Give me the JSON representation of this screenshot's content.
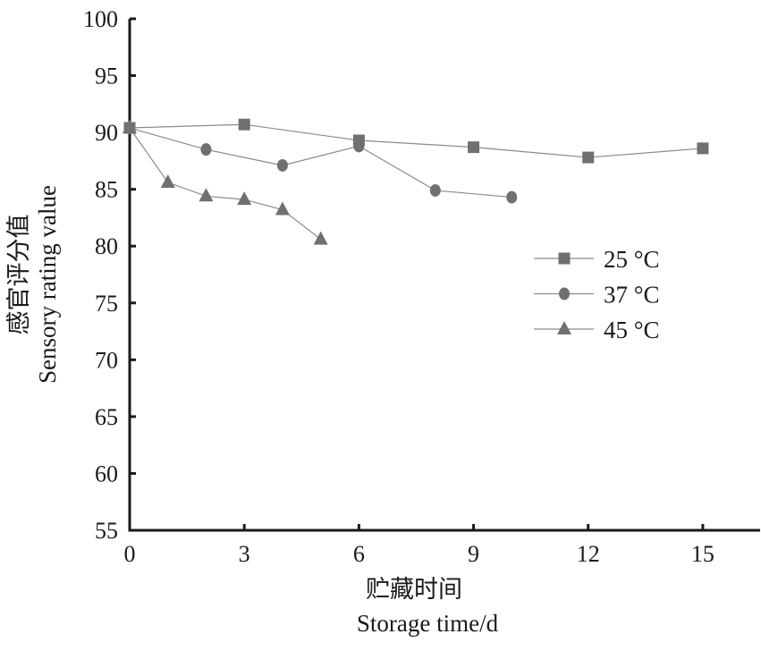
{
  "chart_data": {
    "type": "line",
    "title": "",
    "xlabel_cn": "贮藏时间",
    "xlabel": "Storage time/d",
    "ylabel_cn": "感官评分值",
    "ylabel": "Sensory rating value",
    "xlim": [
      0,
      16.5
    ],
    "ylim": [
      55,
      100
    ],
    "xticks": [
      0,
      3,
      6,
      9,
      12,
      15
    ],
    "yticks": [
      55,
      60,
      65,
      70,
      75,
      80,
      85,
      90,
      95,
      100
    ],
    "grid": false,
    "legend_position": "right-middle",
    "series": [
      {
        "name": "25 °C",
        "marker": "square",
        "x": [
          0,
          3,
          6,
          9,
          12,
          15
        ],
        "y": [
          90.4,
          90.7,
          89.3,
          88.7,
          87.8,
          88.6
        ]
      },
      {
        "name": "37 °C",
        "marker": "circle",
        "x": [
          0,
          2,
          4,
          6,
          8,
          10
        ],
        "y": [
          90.4,
          88.5,
          87.1,
          88.8,
          84.9,
          84.3
        ]
      },
      {
        "name": "45 °C",
        "marker": "triangle",
        "x": [
          0,
          1,
          2,
          3,
          4,
          5
        ],
        "y": [
          90.4,
          85.6,
          84.4,
          84.1,
          83.2,
          80.6
        ]
      }
    ],
    "colors": {
      "marker": "#707070",
      "line": "#8a8a8a",
      "axis": "#1a1a1a"
    }
  }
}
